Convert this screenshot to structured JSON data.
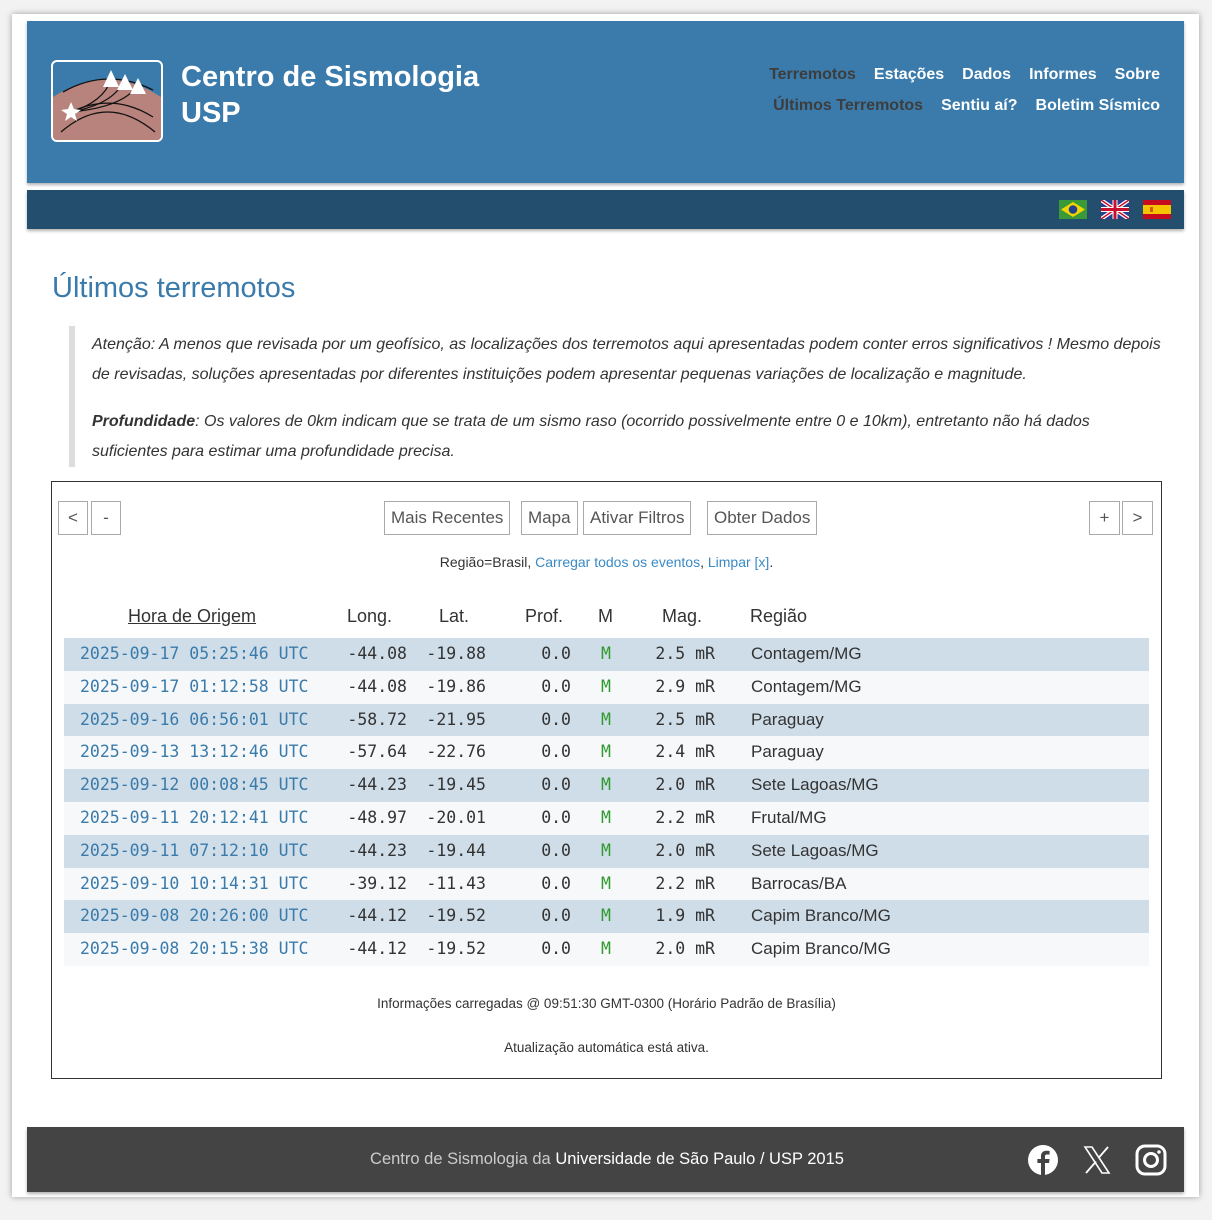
{
  "header": {
    "title_line1": "Centro de Sismologia",
    "title_line2": "USP",
    "nav_main": [
      "Terremotos",
      "Estações",
      "Dados",
      "Informes",
      "Sobre"
    ],
    "nav_sub": [
      "Últimos Terremotos",
      "Sentiu aí?",
      "Boletim Sísmico"
    ],
    "active_main": "Terremotos",
    "active_sub": "Últimos Terremotos",
    "flags": [
      "brazil-flag",
      "uk-flag",
      "spain-flag"
    ]
  },
  "page_title": "Últimos terremotos",
  "notice": {
    "p1": "Atenção: A menos que revisada por um geofísico, as localizações dos terremotos aqui apresentadas podem conter erros significativos ! Mesmo depois de revisadas, soluções apresentadas por diferentes instituições podem apresentar pequenas variações de localização e magnitude.",
    "p2_label": "Profundidade",
    "p2": ": Os valores de 0km indicam que se trata de um sismo raso (ocorrido possivelmente entre 0 e 10km), entretanto não há dados suficientes para estimar uma profundidade precisa."
  },
  "toolbar": {
    "prev": "<",
    "minus": "-",
    "recent": "Mais Recentes",
    "map": "Mapa",
    "filters": "Ativar Filtros",
    "get_data": "Obter Dados",
    "plus": "+",
    "next": ">"
  },
  "filter": {
    "region": "Região=Brasil, ",
    "load_all": "Carregar todos os eventos",
    "sep": ", ",
    "clear": "Limpar [x]",
    "end": "."
  },
  "table": {
    "headers": [
      "Hora de Origem",
      "Long.",
      "Lat.",
      "Prof.",
      "M",
      "Mag.",
      "Região"
    ],
    "rows": [
      [
        "2025-09-17 05:25:46 UTC",
        "-44.08",
        "-19.88",
        "0.0",
        "M",
        "2.5 mR",
        "Contagem/MG"
      ],
      [
        "2025-09-17 01:12:58 UTC",
        "-44.08",
        "-19.86",
        "0.0",
        "M",
        "2.9 mR",
        "Contagem/MG"
      ],
      [
        "2025-09-16 06:56:01 UTC",
        "-58.72",
        "-21.95",
        "0.0",
        "M",
        "2.5 mR",
        "Paraguay"
      ],
      [
        "2025-09-13 13:12:46 UTC",
        "-57.64",
        "-22.76",
        "0.0",
        "M",
        "2.4 mR",
        "Paraguay"
      ],
      [
        "2025-09-12 00:08:45 UTC",
        "-44.23",
        "-19.45",
        "0.0",
        "M",
        "2.0 mR",
        "Sete Lagoas/MG"
      ],
      [
        "2025-09-11 20:12:41 UTC",
        "-48.97",
        "-20.01",
        "0.0",
        "M",
        "2.2 mR",
        "Frutal/MG"
      ],
      [
        "2025-09-11 07:12:10 UTC",
        "-44.23",
        "-19.44",
        "0.0",
        "M",
        "2.0 mR",
        "Sete Lagoas/MG"
      ],
      [
        "2025-09-10 10:14:31 UTC",
        "-39.12",
        "-11.43",
        "0.0",
        "M",
        "2.2 mR",
        "Barrocas/BA"
      ],
      [
        "2025-09-08 20:26:00 UTC",
        "-44.12",
        "-19.52",
        "0.0",
        "M",
        "1.9 mR",
        "Capim Branco/MG"
      ],
      [
        "2025-09-08 20:15:38 UTC",
        "-44.12",
        "-19.52",
        "0.0",
        "M",
        "2.0 mR",
        "Capim Branco/MG"
      ]
    ]
  },
  "status": {
    "loaded": "Informações carregadas @ 09:51:30 GMT-0300 (Horário Padrão de Brasília)",
    "auto": "Atualização automática está ativa."
  },
  "footer": {
    "prefix": "Centro de Sismologia da ",
    "link": "Universidade de São Paulo / USP 2015",
    "social": [
      "facebook",
      "x",
      "instagram"
    ]
  },
  "colors": {
    "header": "#3a7bab",
    "subbar": "#234e6e",
    "footer": "#444444",
    "row_odd": "#cfdde8",
    "link": "#3a7bab",
    "method": "#2e9a2e"
  }
}
